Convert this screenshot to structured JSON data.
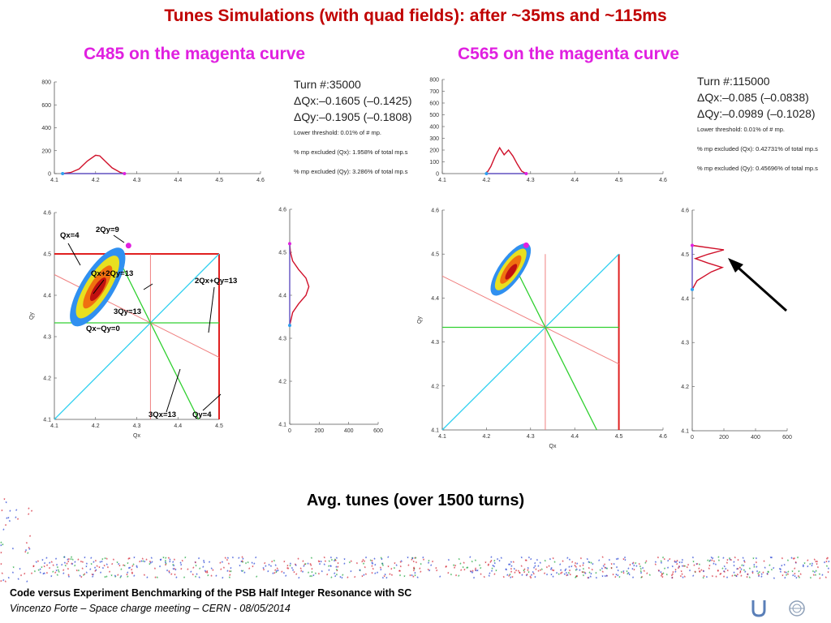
{
  "slide": {
    "title": "Tunes Simulations (with quad fields): after ~35ms and ~115ms",
    "avg_label": "Avg. tunes (over 1500 turns)",
    "footer_line1": "Code versus Experiment Benchmarking of the PSB Half Integer Resonance with SC",
    "footer_line2": "Vincenzo Forte – Space charge meeting – CERN - 08/05/2014"
  },
  "left": {
    "subtitle": "C485 on the magenta curve",
    "turn": "Turn #:35000",
    "dqx": "ΔQx:–0.1605 (–0.1425)",
    "dqy": "ΔQy:–0.1905 (–0.1808)",
    "threshold": "Lower threshold: 0.01% of # mp.",
    "excl_x": "% mp excluded (Qx): 1.958% of total mp.s",
    "excl_y": "% mp excluded (Qy): 3.286% of total mp.s",
    "resonances": {
      "qx4": "Qx=4",
      "qy2_9": "2Qy=9",
      "qx2qy13": "Qx+2Qy=13",
      "q2xqy13": "2Qx+Qy=13",
      "q3y13": "3Qy=13",
      "qxqy0": "Qx−Qy=0",
      "q3x13": "3Qx=13",
      "qy4": "Qy=4"
    }
  },
  "right": {
    "subtitle": "C565 on the magenta curve",
    "turn": "Turn #:115000",
    "dqx": "ΔQx:–0.085 (–0.0838)",
    "dqy": "ΔQy:–0.0989 (–0.1028)",
    "threshold": "Lower threshold: 0.01% of # mp.",
    "excl_x": "% mp excluded (Qx): 0.42731% of total mp.s",
    "excl_y": "% mp excluded (Qy): 0.45696% of total mp.s"
  },
  "chart_data": [
    {
      "type": "line",
      "id": "hist-qx-left",
      "xlim": [
        4.1,
        4.6
      ],
      "ylim": [
        0,
        800
      ],
      "x_ticks": [
        "4.1",
        "4.2",
        "4.3",
        "4.4",
        "4.5",
        "4.6"
      ],
      "y_ticks": [
        "0",
        "200",
        "400",
        "600",
        "800"
      ],
      "series": [
        {
          "x": [
            4.12,
            4.14,
            4.16,
            4.18,
            4.2,
            4.21,
            4.22,
            4.24,
            4.26,
            4.27
          ],
          "y": [
            0,
            10,
            40,
            110,
            160,
            155,
            120,
            50,
            10,
            0
          ]
        }
      ]
    },
    {
      "type": "scatter",
      "id": "tune-left",
      "xlim": [
        4.1,
        4.5
      ],
      "ylim": [
        4.1,
        4.6
      ],
      "x_ticks": [
        "4.1",
        "4.2",
        "4.3",
        "4.4",
        "4.5"
      ],
      "y_ticks": [
        "4.1",
        "4.2",
        "4.3",
        "4.4",
        "4.5",
        "4.6"
      ],
      "xlabel": "Qx",
      "ylabel": "Qy",
      "bare_tune": [
        4.28,
        4.52
      ]
    },
    {
      "type": "line",
      "id": "hist-qy-left",
      "xlim": [
        0,
        600
      ],
      "ylim": [
        4.1,
        4.6
      ],
      "x_ticks": [
        "0",
        "200",
        "400",
        "600"
      ],
      "y_ticks": [
        "4.1",
        "4.2",
        "4.3",
        "4.4",
        "4.5",
        "4.6"
      ],
      "series": [
        {
          "y": [
            4.33,
            4.36,
            4.38,
            4.4,
            4.42,
            4.44,
            4.46,
            4.48,
            4.5,
            4.52
          ],
          "x": [
            0,
            20,
            60,
            110,
            130,
            110,
            60,
            20,
            5,
            0
          ]
        }
      ]
    },
    {
      "type": "line",
      "id": "hist-qx-right",
      "xlim": [
        4.1,
        4.6
      ],
      "ylim": [
        0,
        800
      ],
      "x_ticks": [
        "4.1",
        "4.2",
        "4.3",
        "4.4",
        "4.5",
        "4.6"
      ],
      "y_ticks": [
        "0",
        "100",
        "200",
        "300",
        "400",
        "500",
        "600",
        "700",
        "800"
      ],
      "series": [
        {
          "x": [
            4.2,
            4.21,
            4.22,
            4.23,
            4.24,
            4.25,
            4.26,
            4.27,
            4.28,
            4.29
          ],
          "y": [
            0,
            60,
            150,
            220,
            160,
            200,
            150,
            80,
            20,
            0
          ]
        }
      ]
    },
    {
      "type": "scatter",
      "id": "tune-right",
      "xlim": [
        4.1,
        4.6
      ],
      "ylim": [
        4.1,
        4.6
      ],
      "x_ticks": [
        "4.1",
        "4.2",
        "4.3",
        "4.4",
        "4.5",
        "4.6"
      ],
      "y_ticks": [
        "4.1",
        "4.2",
        "4.3",
        "4.4",
        "4.5",
        "4.6"
      ],
      "xlabel": "Qx",
      "ylabel": "Qy",
      "bare_tune": [
        4.29,
        4.52
      ]
    },
    {
      "type": "line",
      "id": "hist-qy-right",
      "xlim": [
        0,
        600
      ],
      "ylim": [
        4.1,
        4.6
      ],
      "x_ticks": [
        "0",
        "200",
        "400",
        "600"
      ],
      "y_ticks": [
        "4.1",
        "4.2",
        "4.3",
        "4.4",
        "4.5",
        "4.6"
      ],
      "series": [
        {
          "y": [
            4.42,
            4.44,
            4.46,
            4.47,
            4.48,
            4.49,
            4.5,
            4.51,
            4.52
          ],
          "x": [
            0,
            30,
            120,
            190,
            100,
            20,
            100,
            200,
            0
          ]
        }
      ]
    }
  ],
  "colors": {
    "title": "#c00000",
    "subtitle": "#e020e0",
    "histogram": "#d0102a",
    "bare_tune": "#e020e0",
    "integer_line": "#e02020",
    "diagonal": "#30d0f0",
    "half_integer": "#30d030",
    "third": "#f08080"
  }
}
